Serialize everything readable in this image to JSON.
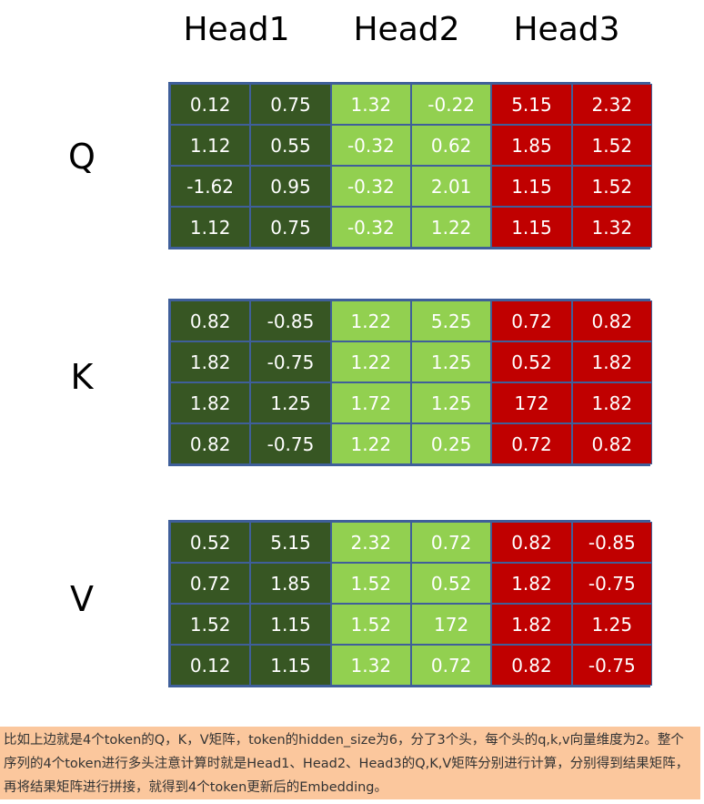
{
  "heads": [
    "Head1",
    "Head2",
    "Head3"
  ],
  "head_colors": [
    "#375623",
    "#92d050",
    "#c00000"
  ],
  "matrices": [
    {
      "label": "Q",
      "rows": [
        [
          "0.12",
          "0.75",
          "1.32",
          "-0.22",
          "5.15",
          "2.32"
        ],
        [
          "1.12",
          "0.55",
          "-0.32",
          "0.62",
          "1.85",
          "1.52"
        ],
        [
          "-1.62",
          "0.95",
          "-0.32",
          "2.01",
          "1.15",
          "1.52"
        ],
        [
          "1.12",
          "0.75",
          "-0.32",
          "1.22",
          "1.15",
          "1.32"
        ]
      ]
    },
    {
      "label": "K",
      "rows": [
        [
          "0.82",
          "-0.85",
          "1.22",
          "5.25",
          "0.72",
          "0.82"
        ],
        [
          "1.82",
          "-0.75",
          "1.22",
          "1.25",
          "0.52",
          "1.82"
        ],
        [
          "1.82",
          "1.25",
          "1.72",
          "1.25",
          "172",
          "1.82"
        ],
        [
          "0.82",
          "-0.75",
          "1.22",
          "0.25",
          "0.72",
          "0.82"
        ]
      ]
    },
    {
      "label": "V",
      "rows": [
        [
          "0.52",
          "5.15",
          "2.32",
          "0.72",
          "0.82",
          "-0.85"
        ],
        [
          "0.72",
          "1.85",
          "1.52",
          "0.52",
          "1.82",
          "-0.75"
        ],
        [
          "1.52",
          "1.15",
          "1.52",
          "172",
          "1.82",
          "1.25"
        ],
        [
          "0.12",
          "1.15",
          "1.32",
          "0.72",
          "0.82",
          "-0.75"
        ]
      ]
    }
  ],
  "description": "比如上边就是4个token的Q，K，V矩阵，token的hidden_size为6，分了3个头，每个头的q,k,v向量维度为2。整个序列的4个token进行多头注意计算时就是Head1、Head2、Head3的Q,K,V矩阵分别进行计算，分别得到结果矩阵，再将结果矩阵进行拼接，就得到4个token更新后的Embedding。"
}
